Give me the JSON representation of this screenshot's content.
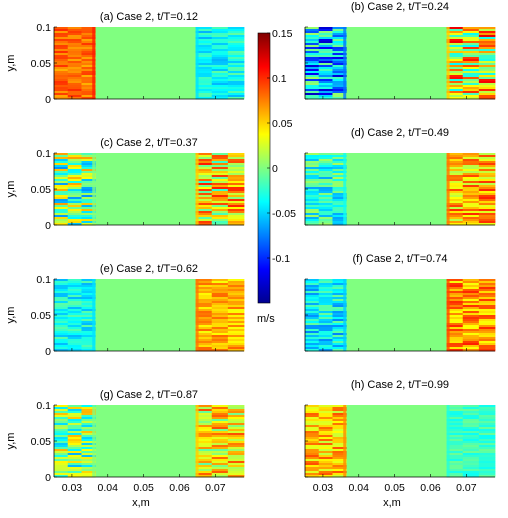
{
  "chart_data": {
    "type": "heatmap",
    "field_description": "horizontal velocity field, eight panels",
    "colorbar": {
      "min": -0.15,
      "max": 0.15,
      "ticks": [
        0.15,
        0.1,
        0.05,
        0,
        -0.05,
        -0.1
      ],
      "tick_labels": [
        "0.15",
        "0.1",
        "0.05",
        "0",
        "-0.05",
        "-0.1"
      ],
      "unit": "m/s",
      "colormap": "jet"
    },
    "x_axis": {
      "label": "x,m",
      "range": [
        0.025,
        0.078
      ],
      "ticks": [
        0.03,
        0.04,
        0.05,
        0.06,
        0.07
      ],
      "tick_labels": [
        "0.03",
        "0.04",
        "0.05",
        "0.06",
        "0.07"
      ]
    },
    "y_axis": {
      "label": "y,m",
      "range": [
        0,
        0.1
      ],
      "ticks": [
        0,
        0.05,
        0.1
      ],
      "tick_labels": [
        "0",
        "0.05",
        "0.1"
      ]
    },
    "panels": [
      {
        "title": "(a) Case 2, t/T=0.12",
        "left_band": {
          "x": [
            0.025,
            0.0365
          ],
          "mean": 0.08,
          "variability": 0.02
        },
        "right_band": {
          "x": [
            0.0645,
            0.078
          ],
          "mean": -0.035,
          "variability": 0.025
        }
      },
      {
        "title": "(b) Case 2, t/T=0.24",
        "left_band": {
          "x": [
            0.025,
            0.0365
          ],
          "mean": -0.06,
          "variability": 0.07
        },
        "right_band": {
          "x": [
            0.0645,
            0.078
          ],
          "mean": 0.04,
          "variability": 0.08
        }
      },
      {
        "title": "(c) Case 2, t/T=0.37",
        "left_band": {
          "x": [
            0.025,
            0.0365
          ],
          "mean": 0.0,
          "variability": 0.07
        },
        "right_band": {
          "x": [
            0.0645,
            0.078
          ],
          "mean": 0.04,
          "variability": 0.065
        }
      },
      {
        "title": "(d) Case 2, t/T=0.49",
        "left_band": {
          "x": [
            0.025,
            0.0365
          ],
          "mean": -0.025,
          "variability": 0.04
        },
        "right_band": {
          "x": [
            0.0645,
            0.078
          ],
          "mean": 0.06,
          "variability": 0.045
        }
      },
      {
        "title": "(e) Case 2, t/T=0.62",
        "left_band": {
          "x": [
            0.025,
            0.0365
          ],
          "mean": -0.035,
          "variability": 0.025
        },
        "right_band": {
          "x": [
            0.0645,
            0.078
          ],
          "mean": 0.06,
          "variability": 0.025
        }
      },
      {
        "title": "(f) Case 2, t/T=0.74",
        "left_band": {
          "x": [
            0.025,
            0.0365
          ],
          "mean": -0.04,
          "variability": 0.035
        },
        "right_band": {
          "x": [
            0.0645,
            0.078
          ],
          "mean": 0.07,
          "variability": 0.035
        }
      },
      {
        "title": "(g) Case 2, t/T=0.87",
        "left_band": {
          "x": [
            0.025,
            0.0365
          ],
          "mean": 0.0,
          "variability": 0.06
        },
        "right_band": {
          "x": [
            0.0645,
            0.078
          ],
          "mean": 0.04,
          "variability": 0.05
        }
      },
      {
        "title": "(h) Case 2, t/T=0.99",
        "left_band": {
          "x": [
            0.025,
            0.0365
          ],
          "mean": 0.055,
          "variability": 0.035
        },
        "right_band": {
          "x": [
            0.0645,
            0.078
          ],
          "mean": -0.02,
          "variability": 0.015
        }
      }
    ]
  }
}
